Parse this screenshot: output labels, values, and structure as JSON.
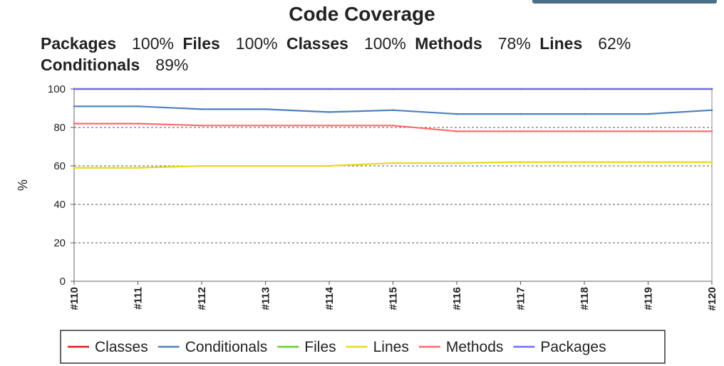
{
  "title": "Code Coverage",
  "summary": [
    {
      "name": "Packages",
      "value": "100%"
    },
    {
      "name": "Files",
      "value": "100%"
    },
    {
      "name": "Classes",
      "value": "100%"
    },
    {
      "name": "Methods",
      "value": "78%"
    },
    {
      "name": "Lines",
      "value": "62%"
    },
    {
      "name": "Conditionals",
      "value": "89%"
    }
  ],
  "chart_data": {
    "type": "line",
    "title": "",
    "xlabel": "",
    "ylabel": "%",
    "ylim": [
      0,
      100
    ],
    "yticks": [
      0,
      20,
      40,
      60,
      80,
      100
    ],
    "grid": true,
    "legend_position": "bottom",
    "x": [
      "#110",
      "#111",
      "#112",
      "#113",
      "#114",
      "#115",
      "#116",
      "#117",
      "#118",
      "#119",
      "#120"
    ],
    "series": [
      {
        "name": "Classes",
        "color": "#e41a1c",
        "values": [
          100,
          100,
          100,
          100,
          100,
          100,
          100,
          100,
          100,
          100,
          100
        ]
      },
      {
        "name": "Conditionals",
        "color": "#4f7fbf",
        "values": [
          91,
          91,
          89.5,
          89.5,
          88,
          89,
          87,
          87,
          87,
          87,
          89
        ]
      },
      {
        "name": "Files",
        "color": "#66cc33",
        "values": [
          100,
          100,
          100,
          100,
          100,
          100,
          100,
          100,
          100,
          100,
          100
        ]
      },
      {
        "name": "Lines",
        "color": "#e8d81a",
        "values": [
          59,
          59,
          60,
          60,
          60,
          61.5,
          61.5,
          62,
          62,
          62,
          62
        ]
      },
      {
        "name": "Methods",
        "color": "#ff6a6a",
        "values": [
          82,
          82,
          81,
          81,
          81,
          81,
          78,
          78,
          78,
          78,
          78
        ]
      },
      {
        "name": "Packages",
        "color": "#6f6cf2",
        "values": [
          100,
          100,
          100,
          100,
          100,
          100,
          100,
          100,
          100,
          100,
          100
        ]
      }
    ]
  }
}
